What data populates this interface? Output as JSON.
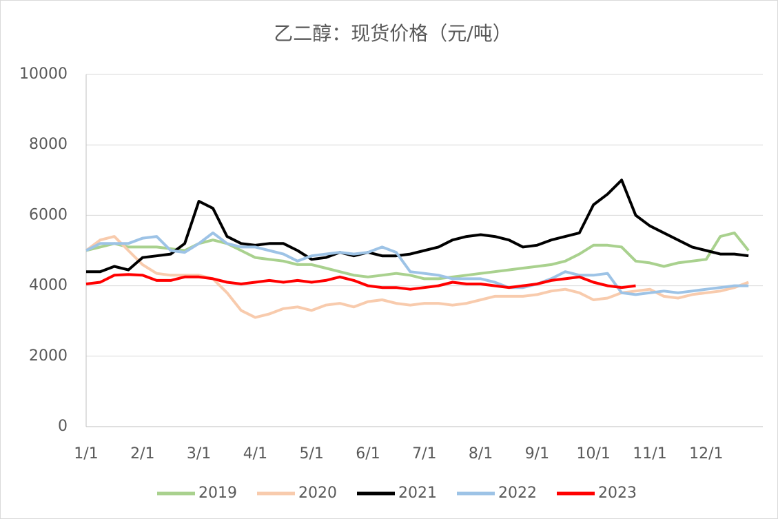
{
  "chart_data": {
    "type": "line",
    "title": "乙二醇：现货价格（元/吨）",
    "categories": [
      "1/1",
      null,
      null,
      null,
      "2/1",
      null,
      null,
      null,
      "3/1",
      null,
      null,
      null,
      "4/1",
      null,
      null,
      null,
      "5/1",
      null,
      null,
      null,
      "6/1",
      null,
      null,
      null,
      "7/1",
      null,
      null,
      null,
      "8/1",
      null,
      null,
      null,
      "9/1",
      null,
      null,
      null,
      "10/1",
      null,
      null,
      null,
      "11/1",
      null,
      null,
      null,
      "12/1",
      null,
      null,
      null
    ],
    "ylim": [
      0,
      10000
    ],
    "yticks": [
      0,
      2000,
      4000,
      6000,
      8000,
      10000
    ],
    "grid": true,
    "legend": "bottom",
    "series": [
      {
        "name": "2019",
        "color": "#a9d18e",
        "values": [
          5000,
          5100,
          5200,
          5100,
          5100,
          5100,
          5050,
          5000,
          5200,
          5300,
          5200,
          5000,
          4800,
          4750,
          4700,
          4600,
          4600,
          4500,
          4400,
          4300,
          4250,
          4300,
          4350,
          4300,
          4200,
          4200,
          4250,
          4300,
          4350,
          4400,
          4450,
          4500,
          4550,
          4600,
          4700,
          4900,
          5150,
          5150,
          5100,
          4700,
          4650,
          4550,
          4650,
          4700,
          4750,
          5400,
          5500,
          5000
        ]
      },
      {
        "name": "2020",
        "color": "#f8cbad",
        "values": [
          5000,
          5300,
          5400,
          5000,
          4600,
          4350,
          4300,
          4300,
          4300,
          4200,
          3800,
          3300,
          3100,
          3200,
          3350,
          3400,
          3300,
          3450,
          3500,
          3400,
          3550,
          3600,
          3500,
          3450,
          3500,
          3500,
          3450,
          3500,
          3600,
          3700,
          3700,
          3700,
          3750,
          3850,
          3900,
          3800,
          3600,
          3650,
          3800,
          3850,
          3900,
          3700,
          3650,
          3750,
          3800,
          3850,
          3950,
          4100
        ]
      },
      {
        "name": "2021",
        "color": "#000000",
        "values": [
          4400,
          4400,
          4550,
          4450,
          4800,
          4850,
          4900,
          5200,
          6400,
          6200,
          5400,
          5200,
          5150,
          5200,
          5200,
          5000,
          4750,
          4800,
          4950,
          4850,
          4950,
          4850,
          4850,
          4900,
          5000,
          5100,
          5300,
          5400,
          5450,
          5400,
          5300,
          5100,
          5150,
          5300,
          5400,
          5500,
          6300,
          6600,
          7000,
          6000,
          5700,
          5500,
          5300,
          5100,
          5000,
          4900,
          4900,
          4850
        ]
      },
      {
        "name": "2022",
        "color": "#9dc3e6",
        "values": [
          5000,
          5200,
          5200,
          5200,
          5350,
          5400,
          5000,
          4950,
          5200,
          5500,
          5200,
          5100,
          5100,
          5000,
          4900,
          4700,
          4850,
          4900,
          4950,
          4900,
          4950,
          5100,
          4950,
          4400,
          4350,
          4300,
          4200,
          4200,
          4200,
          4100,
          3950,
          3950,
          4050,
          4200,
          4400,
          4300,
          4300,
          4350,
          3800,
          3750,
          3800,
          3850,
          3800,
          3850,
          3900,
          3950,
          4000,
          4000
        ]
      },
      {
        "name": "2023",
        "color": "#ff0000",
        "values": [
          4050,
          4100,
          4300,
          4320,
          4300,
          4150,
          4150,
          4250,
          4250,
          4200,
          4100,
          4050,
          4100,
          4150,
          4100,
          4150,
          4100,
          4150,
          4250,
          4150,
          4000,
          3950,
          3950,
          3900,
          3950,
          4000,
          4100,
          4050,
          4050,
          4000,
          3950,
          4000,
          4050,
          4150,
          4200,
          4250,
          4100,
          4000,
          3950,
          4000,
          null,
          null,
          null,
          null,
          null,
          null,
          null,
          null
        ]
      }
    ]
  }
}
